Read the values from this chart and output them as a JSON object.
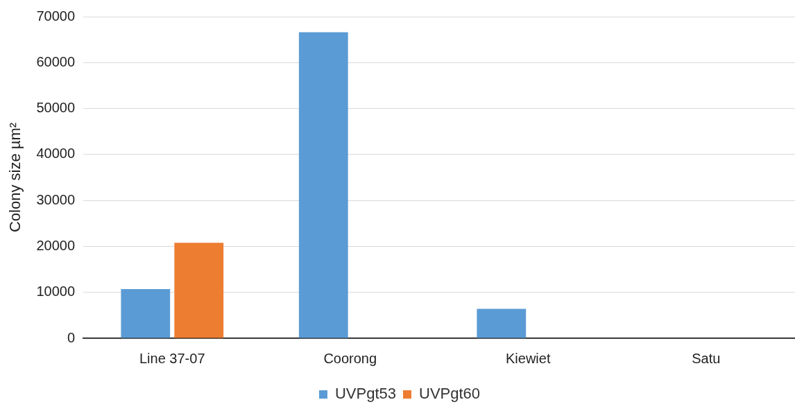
{
  "chart_data": {
    "type": "bar",
    "ylabel": "Colony size µm²",
    "categories": [
      "Line 37-07",
      "Coorong",
      "Kiewiet",
      "Satu"
    ],
    "series": [
      {
        "name": "UVPgt53",
        "color": "#5b9bd5",
        "values": [
          10700,
          66600,
          6400,
          0
        ]
      },
      {
        "name": "UVPgt60",
        "color": "#ed7d31",
        "values": [
          20800,
          0,
          0,
          0
        ]
      }
    ],
    "ylim": [
      0,
      70000
    ],
    "yticks": [
      0,
      10000,
      20000,
      30000,
      40000,
      50000,
      60000,
      70000
    ],
    "grid": "y",
    "legend": "bottom"
  }
}
